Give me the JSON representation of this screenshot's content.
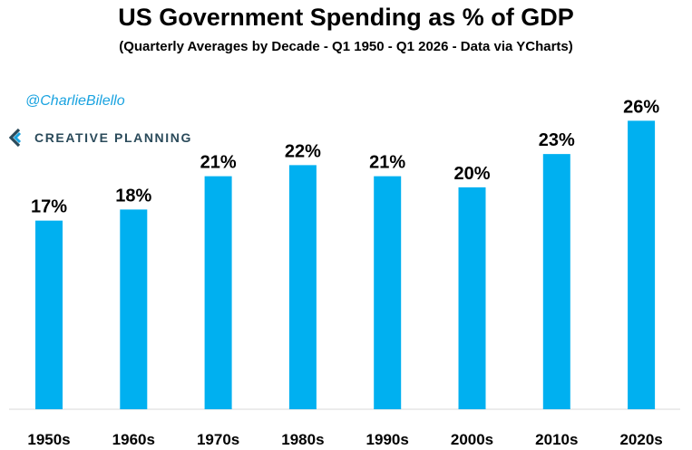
{
  "header": {
    "title": "US Government Spending as % of GDP",
    "subtitle": "(Quarterly Averages by Decade - Q1 1950 - Q1 2026 - Data via YCharts)"
  },
  "branding": {
    "handle": "@CharlieBilello",
    "logo_text": "CREATIVE PLANNING",
    "logo_icon": "creative-planning-logo-icon",
    "handle_color": "#1aa3e0"
  },
  "colors": {
    "bar": "#00b0f0",
    "baseline": "#d9d9d9",
    "text": "#000000"
  },
  "chart_data": {
    "type": "bar",
    "categories": [
      "1950s",
      "1960s",
      "1970s",
      "1980s",
      "1990s",
      "2000s",
      "2010s",
      "2020s"
    ],
    "values": [
      17,
      18,
      21,
      22,
      21,
      20,
      23,
      26
    ],
    "labels": [
      "17%",
      "18%",
      "21%",
      "22%",
      "21%",
      "20%",
      "23%",
      "26%"
    ],
    "title": "US Government Spending as % of GDP",
    "subtitle": "(Quarterly Averages by Decade - Q1 1950 - Q1 2026 - Data via YCharts)",
    "xlabel": "",
    "ylabel": "",
    "ylim": [
      0,
      26.6
    ],
    "grid": false,
    "legend": "none"
  }
}
